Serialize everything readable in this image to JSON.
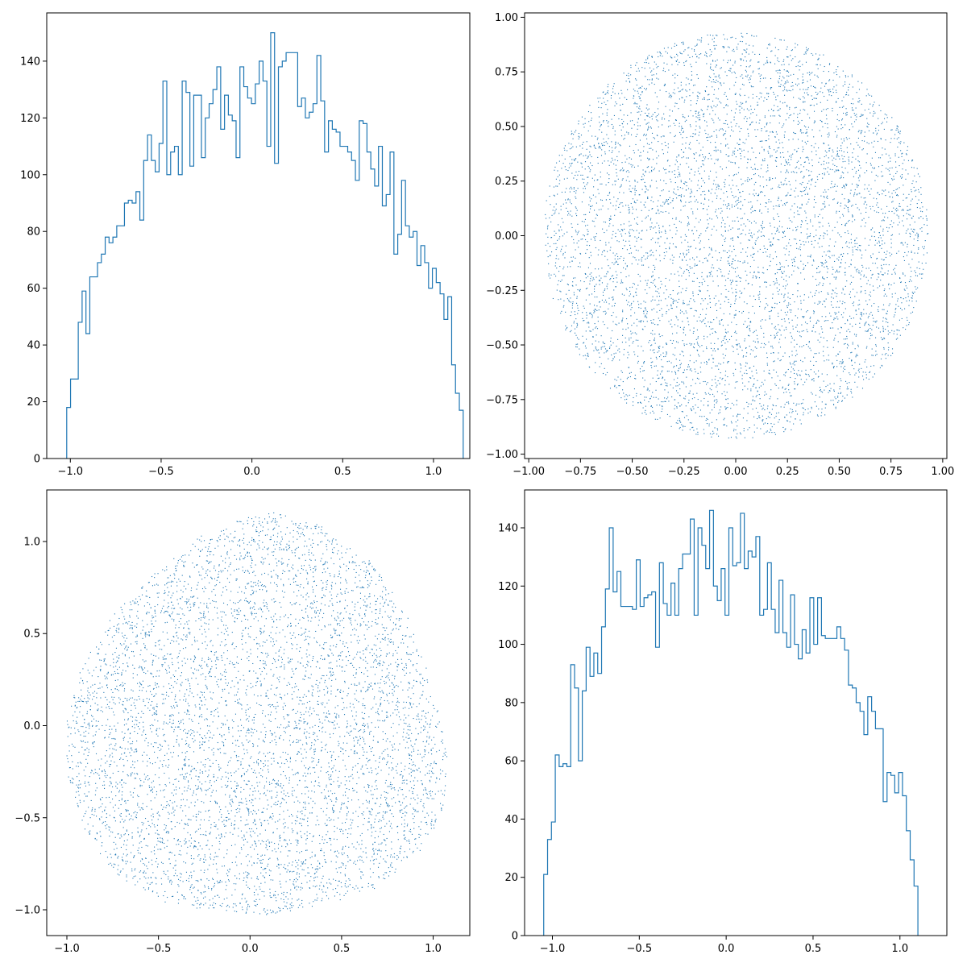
{
  "colors": {
    "series": "#1f77b4",
    "axis": "#000000",
    "background": "#ffffff"
  },
  "chart_data": [
    {
      "type": "histogram",
      "panel": "top-left",
      "title": "",
      "xlabel": "",
      "ylabel": "",
      "grid": false,
      "legend": "none",
      "bin_start": -1.02,
      "bin_width": 0.0212,
      "counts": [
        18,
        28,
        28,
        48,
        59,
        44,
        64,
        64,
        69,
        72,
        78,
        76,
        78,
        82,
        82,
        90,
        91,
        90,
        94,
        84,
        105,
        114,
        105,
        101,
        111,
        133,
        100,
        108,
        110,
        100,
        133,
        129,
        103,
        128,
        128,
        106,
        120,
        125,
        130,
        138,
        116,
        128,
        121,
        119,
        106,
        138,
        131,
        127,
        125,
        132,
        140,
        133,
        110,
        150,
        104,
        138,
        140,
        143,
        143,
        143,
        124,
        127,
        120,
        122,
        125,
        142,
        126,
        108,
        119,
        116,
        115,
        110,
        110,
        108,
        105,
        98,
        119,
        118,
        108,
        102,
        96,
        110,
        89,
        93,
        108,
        72,
        79,
        98,
        82,
        78,
        80,
        68,
        75,
        69,
        60,
        67,
        62,
        58,
        49,
        57,
        33,
        23,
        17
      ],
      "xlim": [
        -1.13,
        1.2
      ],
      "ylim": [
        0,
        157
      ],
      "xticks": [
        -1.0,
        -0.5,
        0.0,
        0.5,
        1.0
      ],
      "xtick_labels": [
        "−1.0",
        "−0.5",
        "0.0",
        "0.5",
        "1.0"
      ],
      "yticks": [
        0,
        20,
        40,
        60,
        80,
        100,
        120,
        140
      ],
      "ytick_labels": [
        "0",
        "20",
        "40",
        "60",
        "80",
        "100",
        "120",
        "140"
      ]
    },
    {
      "type": "scatter",
      "panel": "top-right",
      "title": "",
      "xlabel": "",
      "ylabel": "",
      "grid": false,
      "legend": "none",
      "shape": {
        "kind": "disk",
        "center": [
          0.0,
          0.0
        ],
        "radius": 0.93
      },
      "point_count": 6000,
      "xlim": [
        -1.02,
        1.02
      ],
      "ylim": [
        -1.02,
        1.02
      ],
      "xticks": [
        -1.0,
        -0.75,
        -0.5,
        -0.25,
        0.0,
        0.25,
        0.5,
        0.75,
        1.0
      ],
      "xtick_labels": [
        "−1.00",
        "−0.75",
        "−0.50",
        "−0.25",
        "0.00",
        "0.25",
        "0.50",
        "0.75",
        "1.00"
      ],
      "yticks": [
        -1.0,
        -0.75,
        -0.5,
        -0.25,
        0.0,
        0.25,
        0.5,
        0.75,
        1.0
      ],
      "ytick_labels": [
        "−1.00",
        "−0.75",
        "−0.50",
        "−0.25",
        "0.00",
        "0.25",
        "0.50",
        "0.75",
        "1.00"
      ]
    },
    {
      "type": "scatter",
      "panel": "bottom-left",
      "title": "",
      "xlabel": "",
      "ylabel": "",
      "grid": false,
      "legend": "none",
      "shape": {
        "kind": "polygon",
        "vertices": [
          [
            0.12,
            1.17
          ],
          [
            0.4,
            1.08
          ],
          [
            0.65,
            0.9
          ],
          [
            0.85,
            0.62
          ],
          [
            0.97,
            0.3
          ],
          [
            1.05,
            0.0
          ],
          [
            1.09,
            -0.25
          ],
          [
            1.05,
            -0.48
          ],
          [
            0.92,
            -0.7
          ],
          [
            0.7,
            -0.88
          ],
          [
            0.4,
            -0.98
          ],
          [
            0.1,
            -1.03
          ],
          [
            -0.2,
            -1.02
          ],
          [
            -0.5,
            -0.95
          ],
          [
            -0.75,
            -0.8
          ],
          [
            -0.92,
            -0.55
          ],
          [
            -1.0,
            -0.25
          ],
          [
            -1.0,
            0.05
          ],
          [
            -0.93,
            0.3
          ],
          [
            -0.75,
            0.6
          ],
          [
            -0.5,
            0.85
          ],
          [
            -0.22,
            1.07
          ]
        ]
      },
      "point_count": 6000,
      "xlim": [
        -1.11,
        1.2
      ],
      "ylim": [
        -1.14,
        1.28
      ],
      "xticks": [
        -1.0,
        -0.5,
        0.0,
        0.5,
        1.0
      ],
      "xtick_labels": [
        "−1.0",
        "−0.5",
        "0.0",
        "0.5",
        "1.0"
      ],
      "yticks": [
        -1.0,
        -0.5,
        0.0,
        0.5,
        1.0
      ],
      "ytick_labels": [
        "−1.0",
        "−0.5",
        "0.0",
        "0.5",
        "1.0"
      ]
    },
    {
      "type": "histogram",
      "panel": "bottom-right",
      "title": "",
      "xlabel": "",
      "ylabel": "",
      "grid": false,
      "legend": "none",
      "bin_start": -1.05,
      "bin_width": 0.0222,
      "counts": [
        21,
        33,
        39,
        62,
        58,
        59,
        58,
        93,
        85,
        60,
        84,
        99,
        89,
        97,
        90,
        106,
        119,
        140,
        118,
        125,
        113,
        113,
        113,
        112,
        129,
        113,
        116,
        117,
        118,
        99,
        128,
        114,
        110,
        121,
        110,
        126,
        131,
        131,
        143,
        110,
        140,
        134,
        126,
        146,
        120,
        115,
        126,
        110,
        140,
        127,
        128,
        145,
        126,
        132,
        130,
        137,
        110,
        112,
        128,
        112,
        104,
        122,
        104,
        99,
        117,
        100,
        95,
        105,
        97,
        116,
        100,
        116,
        103,
        102,
        102,
        102,
        106,
        102,
        98,
        86,
        85,
        80,
        77,
        69,
        82,
        77,
        71,
        71,
        46,
        56,
        55,
        49,
        56,
        48,
        36,
        26,
        17
      ],
      "xlim": [
        -1.16,
        1.27
      ],
      "ylim": [
        0,
        153
      ],
      "xticks": [
        -1.0,
        -0.5,
        0.0,
        0.5,
        1.0
      ],
      "xtick_labels": [
        "−1.0",
        "−0.5",
        "0.0",
        "0.5",
        "1.0"
      ],
      "yticks": [
        0,
        20,
        40,
        60,
        80,
        100,
        120,
        140
      ],
      "ytick_labels": [
        "0",
        "20",
        "40",
        "60",
        "80",
        "100",
        "120",
        "140"
      ]
    }
  ]
}
